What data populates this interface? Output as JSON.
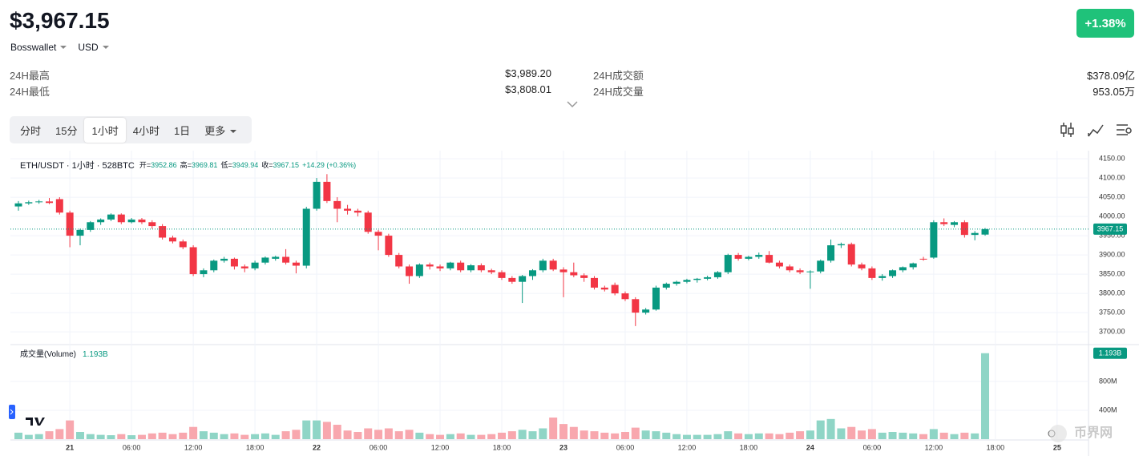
{
  "header": {
    "price": "$3,967.15",
    "wallet": "Bosswallet",
    "currency": "USD",
    "change": "+1.38%"
  },
  "stats": [
    {
      "label": "24H最高",
      "value": "$3,989.20"
    },
    {
      "label": "24H最低",
      "value": "$3,808.01"
    },
    {
      "label": "24H成交额",
      "value": "$378.09亿"
    },
    {
      "label": "24H成交量",
      "value": "953.05万"
    }
  ],
  "tabs": [
    "分时",
    "15分",
    "1小时",
    "4小时",
    "1日",
    "更多"
  ],
  "active_tab": 2,
  "chart_data": {
    "type": "candlestick",
    "symbol_line": "ETH/USDT · 1小时 · 528BTC",
    "ohlc_legend_labels": [
      "开=",
      "高=",
      "低=",
      "收="
    ],
    "change_text": "+14.29 (+0.36%)",
    "volume_title": "成交量(Volume)",
    "volume_value_label": "1.193B",
    "watermark": "币界网",
    "up_color": "#089981",
    "down_color": "#f23645",
    "up_volume_color": "#8fd5c6",
    "down_volume_color": "#f8a7ae",
    "grid": true,
    "ylim": [
      3671,
      4171
    ],
    "yticks": [
      {
        "value": 3700,
        "label": "3700.00"
      },
      {
        "value": 3750,
        "label": "3750.00"
      },
      {
        "value": 3800,
        "label": "3800.00"
      },
      {
        "value": 3850,
        "label": "3850.00"
      },
      {
        "value": 3900,
        "label": "3900.00"
      },
      {
        "value": 3950,
        "label": "3950.00"
      },
      {
        "value": 4000,
        "label": "4000.00"
      },
      {
        "value": 4050,
        "label": "4050.00"
      },
      {
        "value": 4100,
        "label": "4100.00"
      },
      {
        "value": 4150,
        "label": "4150.00"
      }
    ],
    "vlim": [
      0,
      1290
    ],
    "vticks": [
      {
        "value": 400,
        "label": "400M"
      },
      {
        "value": 800,
        "label": "800M"
      }
    ],
    "xticks": [
      "21",
      "06:00",
      "12:00",
      "18:00",
      "22",
      "06:00",
      "12:00",
      "18:00",
      "23",
      "06:00",
      "12:00",
      "18:00",
      "24",
      "06:00",
      "12:00",
      "18:00",
      "25"
    ],
    "candles": [
      {
        "open": 4026,
        "high": 4040,
        "low": 4015,
        "close": 4034,
        "volume": 90
      },
      {
        "open": 4034,
        "high": 4041,
        "low": 4030,
        "close": 4037,
        "volume": 60
      },
      {
        "open": 4037,
        "high": 4043,
        "low": 4033,
        "close": 4039,
        "volume": 70
      },
      {
        "open": 4039,
        "high": 4048,
        "low": 4032,
        "close": 4035,
        "volume": 110
      },
      {
        "open": 4045,
        "high": 4050,
        "low": 4005,
        "close": 4010,
        "volume": 140
      },
      {
        "open": 4010,
        "high": 4015,
        "low": 3920,
        "close": 3950,
        "volume": 260
      },
      {
        "open": 3950,
        "high": 3968,
        "low": 3925,
        "close": 3965,
        "volume": 100
      },
      {
        "open": 3965,
        "high": 3988,
        "low": 3960,
        "close": 3985,
        "volume": 70
      },
      {
        "open": 3985,
        "high": 3995,
        "low": 3978,
        "close": 3992,
        "volume": 60
      },
      {
        "open": 3992,
        "high": 4008,
        "low": 3988,
        "close": 4005,
        "volume": 55
      },
      {
        "open": 4005,
        "high": 4008,
        "low": 3980,
        "close": 3985,
        "volume": 70
      },
      {
        "open": 3985,
        "high": 3996,
        "low": 3982,
        "close": 3992,
        "volume": 55
      },
      {
        "open": 3992,
        "high": 3996,
        "low": 3980,
        "close": 3985,
        "volume": 60
      },
      {
        "open": 3985,
        "high": 3990,
        "low": 3968,
        "close": 3975,
        "volume": 80
      },
      {
        "open": 3975,
        "high": 3980,
        "low": 3940,
        "close": 3945,
        "volume": 90
      },
      {
        "open": 3945,
        "high": 3950,
        "low": 3930,
        "close": 3935,
        "volume": 70
      },
      {
        "open": 3935,
        "high": 3940,
        "low": 3915,
        "close": 3920,
        "volume": 90
      },
      {
        "open": 3920,
        "high": 3925,
        "low": 3845,
        "close": 3850,
        "volume": 170
      },
      {
        "open": 3850,
        "high": 3865,
        "low": 3842,
        "close": 3860,
        "volume": 110
      },
      {
        "open": 3860,
        "high": 3888,
        "low": 3855,
        "close": 3885,
        "volume": 90
      },
      {
        "open": 3885,
        "high": 3895,
        "low": 3880,
        "close": 3890,
        "volume": 70
      },
      {
        "open": 3890,
        "high": 3893,
        "low": 3862,
        "close": 3870,
        "volume": 80
      },
      {
        "open": 3870,
        "high": 3875,
        "low": 3855,
        "close": 3865,
        "volume": 60
      },
      {
        "open": 3865,
        "high": 3885,
        "low": 3860,
        "close": 3880,
        "volume": 70
      },
      {
        "open": 3880,
        "high": 3896,
        "low": 3875,
        "close": 3893,
        "volume": 80
      },
      {
        "open": 3890,
        "high": 3898,
        "low": 3885,
        "close": 3895,
        "volume": 60
      },
      {
        "open": 3895,
        "high": 3915,
        "low": 3875,
        "close": 3880,
        "volume": 110
      },
      {
        "open": 3880,
        "high": 3885,
        "low": 3852,
        "close": 3872,
        "volume": 130
      },
      {
        "open": 3872,
        "high": 4025,
        "low": 3865,
        "close": 4020,
        "volume": 260
      },
      {
        "open": 4020,
        "high": 4100,
        "low": 4015,
        "close": 4090,
        "volume": 260
      },
      {
        "open": 4090,
        "high": 4110,
        "low": 4035,
        "close": 4040,
        "volume": 240
      },
      {
        "open": 4040,
        "high": 4050,
        "low": 3985,
        "close": 4020,
        "volume": 200
      },
      {
        "open": 4020,
        "high": 4030,
        "low": 4005,
        "close": 4015,
        "volume": 120
      },
      {
        "open": 4015,
        "high": 4020,
        "low": 4000,
        "close": 4010,
        "volume": 100
      },
      {
        "open": 4010,
        "high": 4015,
        "low": 3955,
        "close": 3960,
        "volume": 150
      },
      {
        "open": 3960,
        "high": 3965,
        "low": 3912,
        "close": 3950,
        "volume": 130
      },
      {
        "open": 3950,
        "high": 3955,
        "low": 3895,
        "close": 3900,
        "volume": 150
      },
      {
        "open": 3900,
        "high": 3905,
        "low": 3865,
        "close": 3870,
        "volume": 110
      },
      {
        "open": 3870,
        "high": 3875,
        "low": 3825,
        "close": 3845,
        "volume": 130
      },
      {
        "open": 3845,
        "high": 3878,
        "low": 3840,
        "close": 3875,
        "volume": 90
      },
      {
        "open": 3875,
        "high": 3880,
        "low": 3862,
        "close": 3870,
        "volume": 70
      },
      {
        "open": 3870,
        "high": 3875,
        "low": 3858,
        "close": 3865,
        "volume": 60
      },
      {
        "open": 3865,
        "high": 3882,
        "low": 3860,
        "close": 3880,
        "volume": 70
      },
      {
        "open": 3880,
        "high": 3885,
        "low": 3855,
        "close": 3860,
        "volume": 80
      },
      {
        "open": 3860,
        "high": 3876,
        "low": 3855,
        "close": 3873,
        "volume": 60
      },
      {
        "open": 3873,
        "high": 3878,
        "low": 3855,
        "close": 3860,
        "volume": 60
      },
      {
        "open": 3860,
        "high": 3864,
        "low": 3850,
        "close": 3855,
        "volume": 70
      },
      {
        "open": 3855,
        "high": 3860,
        "low": 3835,
        "close": 3840,
        "volume": 90
      },
      {
        "open": 3840,
        "high": 3845,
        "low": 3825,
        "close": 3830,
        "volume": 110
      },
      {
        "open": 3830,
        "high": 3848,
        "low": 3775,
        "close": 3845,
        "volume": 130
      },
      {
        "open": 3845,
        "high": 3863,
        "low": 3835,
        "close": 3860,
        "volume": 110
      },
      {
        "open": 3860,
        "high": 3890,
        "low": 3855,
        "close": 3885,
        "volume": 150
      },
      {
        "open": 3885,
        "high": 3890,
        "low": 3858,
        "close": 3862,
        "volume": 300
      },
      {
        "open": 3862,
        "high": 3868,
        "low": 3790,
        "close": 3855,
        "volume": 210
      },
      {
        "open": 3855,
        "high": 3880,
        "low": 3842,
        "close": 3847,
        "volume": 170
      },
      {
        "open": 3847,
        "high": 3852,
        "low": 3830,
        "close": 3840,
        "volume": 120
      },
      {
        "open": 3840,
        "high": 3845,
        "low": 3810,
        "close": 3815,
        "volume": 110
      },
      {
        "open": 3815,
        "high": 3820,
        "low": 3805,
        "close": 3810,
        "volume": 90
      },
      {
        "open": 3822,
        "high": 3828,
        "low": 3795,
        "close": 3800,
        "volume": 80
      },
      {
        "open": 3800,
        "high": 3805,
        "low": 3780,
        "close": 3785,
        "volume": 100
      },
      {
        "open": 3785,
        "high": 3790,
        "low": 3715,
        "close": 3750,
        "volume": 160
      },
      {
        "open": 3750,
        "high": 3762,
        "low": 3745,
        "close": 3758,
        "volume": 120
      },
      {
        "open": 3758,
        "high": 3820,
        "low": 3755,
        "close": 3815,
        "volume": 110
      },
      {
        "open": 3815,
        "high": 3828,
        "low": 3810,
        "close": 3825,
        "volume": 90
      },
      {
        "open": 3825,
        "high": 3833,
        "low": 3820,
        "close": 3830,
        "volume": 70
      },
      {
        "open": 3830,
        "high": 3838,
        "low": 3826,
        "close": 3835,
        "volume": 60
      },
      {
        "open": 3835,
        "high": 3840,
        "low": 3828,
        "close": 3838,
        "volume": 60
      },
      {
        "open": 3838,
        "high": 3846,
        "low": 3834,
        "close": 3842,
        "volume": 60
      },
      {
        "open": 3842,
        "high": 3858,
        "low": 3838,
        "close": 3855,
        "volume": 70
      },
      {
        "open": 3855,
        "high": 3903,
        "low": 3850,
        "close": 3900,
        "volume": 110
      },
      {
        "open": 3900,
        "high": 3905,
        "low": 3885,
        "close": 3890,
        "volume": 80
      },
      {
        "open": 3890,
        "high": 3898,
        "low": 3886,
        "close": 3895,
        "volume": 70
      },
      {
        "open": 3895,
        "high": 3906,
        "low": 3890,
        "close": 3900,
        "volume": 80
      },
      {
        "open": 3900,
        "high": 3910,
        "low": 3878,
        "close": 3880,
        "volume": 80
      },
      {
        "open": 3880,
        "high": 3885,
        "low": 3865,
        "close": 3870,
        "volume": 70
      },
      {
        "open": 3870,
        "high": 3875,
        "low": 3855,
        "close": 3860,
        "volume": 90
      },
      {
        "open": 3860,
        "high": 3865,
        "low": 3850,
        "close": 3855,
        "volume": 110
      },
      {
        "open": 3855,
        "high": 3860,
        "low": 3812,
        "close": 3857,
        "volume": 120
      },
      {
        "open": 3857,
        "high": 3888,
        "low": 3852,
        "close": 3885,
        "volume": 260
      },
      {
        "open": 3885,
        "high": 3940,
        "low": 3880,
        "close": 3925,
        "volume": 280
      },
      {
        "open": 3925,
        "high": 3932,
        "low": 3918,
        "close": 3928,
        "volume": 150
      },
      {
        "open": 3928,
        "high": 3932,
        "low": 3870,
        "close": 3875,
        "volume": 170
      },
      {
        "open": 3875,
        "high": 3880,
        "low": 3860,
        "close": 3865,
        "volume": 120
      },
      {
        "open": 3865,
        "high": 3870,
        "low": 3835,
        "close": 3840,
        "volume": 140
      },
      {
        "open": 3840,
        "high": 3850,
        "low": 3833,
        "close": 3845,
        "volume": 90
      },
      {
        "open": 3845,
        "high": 3862,
        "low": 3840,
        "close": 3860,
        "volume": 100
      },
      {
        "open": 3860,
        "high": 3870,
        "low": 3855,
        "close": 3868,
        "volume": 90
      },
      {
        "open": 3868,
        "high": 3880,
        "low": 3862,
        "close": 3878,
        "volume": 80
      },
      {
        "open": 3890,
        "high": 3895,
        "low": 3885,
        "close": 3888,
        "volume": 70
      },
      {
        "open": 3893,
        "high": 3990,
        "low": 3890,
        "close": 3985,
        "volume": 140
      },
      {
        "open": 3985,
        "high": 3995,
        "low": 3975,
        "close": 3980,
        "volume": 90
      },
      {
        "open": 3978,
        "high": 3988,
        "low": 3972,
        "close": 3985,
        "volume": 70
      },
      {
        "open": 3985,
        "high": 3990,
        "low": 3945,
        "close": 3952,
        "volume": 90
      },
      {
        "open": 3952,
        "high": 3962,
        "low": 3938,
        "close": 3957,
        "volume": 80
      },
      {
        "open": 3952.86,
        "high": 3969.81,
        "low": 3949.94,
        "close": 3967.15,
        "volume": 1193
      }
    ]
  }
}
